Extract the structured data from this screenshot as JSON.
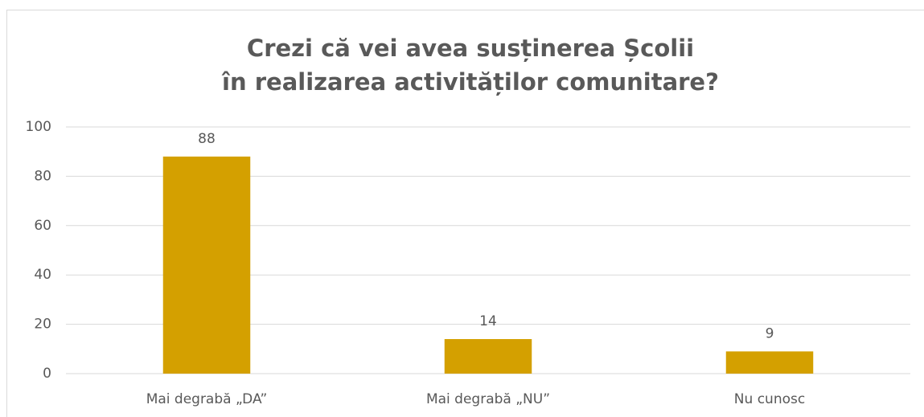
{
  "chart_data": {
    "type": "bar",
    "title": [
      "Crezi că vei avea susținerea Școlii",
      "în realizarea activităților comunitare?"
    ],
    "categories": [
      "Mai degrabă „DA”",
      "Mai degrabă „NU”",
      "Nu cunosc"
    ],
    "values": [
      88,
      14,
      9
    ],
    "color": "#d4a000",
    "ylim": [
      0,
      100
    ],
    "yticks": [
      0,
      20,
      40,
      60,
      80,
      100
    ],
    "grid": true
  }
}
